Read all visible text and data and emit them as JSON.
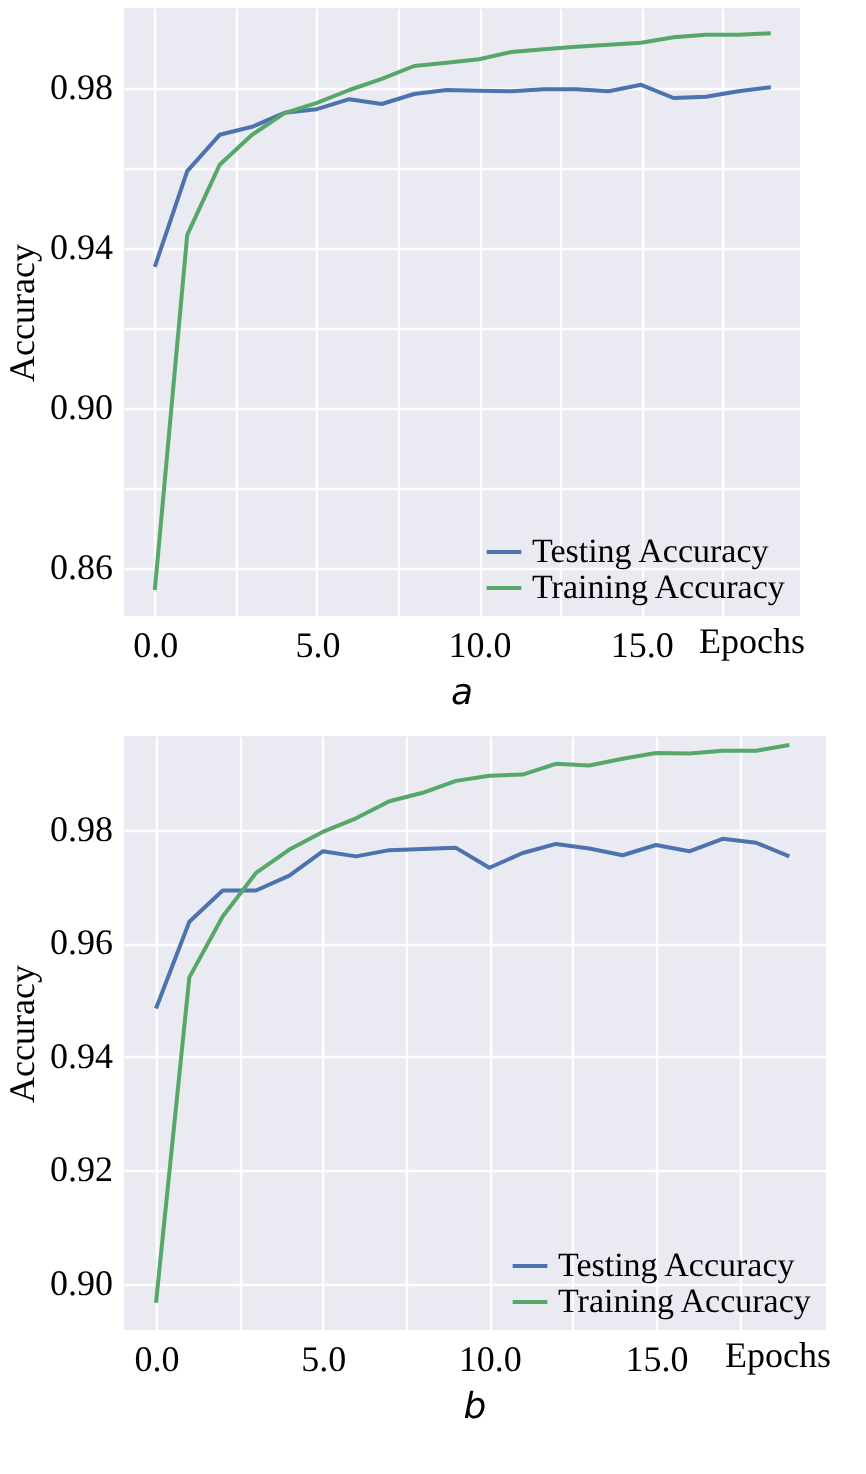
{
  "chart_data": [
    {
      "type": "line",
      "xlabel": "Epochs",
      "ylabel": "Accuracy",
      "annotations": [
        "a"
      ],
      "x": [
        0,
        1,
        2,
        3,
        4,
        5,
        6,
        7,
        8,
        9,
        10,
        11,
        12,
        13,
        14,
        15,
        16,
        17,
        18,
        19
      ],
      "series": [
        {
          "name": "Testing Accuracy",
          "color": "#4c72b0",
          "values": [
            0.9353,
            0.9592,
            0.9683,
            0.9703,
            0.9738,
            0.9747,
            0.9772,
            0.976,
            0.9785,
            0.9795,
            0.9793,
            0.9792,
            0.9797,
            0.9797,
            0.9792,
            0.9808,
            0.9775,
            0.9778,
            0.9792,
            0.9802
          ]
        },
        {
          "name": "Training Accuracy",
          "color": "#55a868",
          "values": [
            0.8545,
            0.9433,
            0.9608,
            0.9683,
            0.9737,
            0.9763,
            0.9795,
            0.9823,
            0.9855,
            0.9863,
            0.9872,
            0.989,
            0.9897,
            0.9903,
            0.9908,
            0.9913,
            0.9927,
            0.9933,
            0.9933,
            0.9937
          ]
        }
      ],
      "xlim": [
        -0.95,
        19.9
      ],
      "ylim": [
        0.848,
        1.0
      ],
      "xticks": [
        {
          "value": 0,
          "label": "0.0"
        },
        {
          "value": 2.5,
          "label": null
        },
        {
          "value": 5,
          "label": "5.0"
        },
        {
          "value": 7.5,
          "label": null
        },
        {
          "value": 10,
          "label": "10.0"
        },
        {
          "value": 12.5,
          "label": null
        },
        {
          "value": 15,
          "label": "15.0"
        },
        {
          "value": 17.5,
          "label": null
        }
      ],
      "yticks": [
        0.86,
        {
          "value": 0.88,
          "label": null
        },
        {
          "value": 0.9,
          "label": "0.90"
        },
        {
          "value": 0.92,
          "label": null
        },
        0.94,
        {
          "value": 0.96,
          "label": null
        },
        0.98
      ],
      "grid": true,
      "legend": "bottom right",
      "line_style": "solid",
      "marker": "none"
    },
    {
      "type": "line",
      "xlabel": "Epochs",
      "ylabel": "Accuracy",
      "annotations": [
        "b"
      ],
      "x": [
        0,
        1,
        2,
        3,
        4,
        5,
        6,
        7,
        8,
        9,
        10,
        11,
        12,
        13,
        14,
        15,
        16,
        17,
        18,
        19
      ],
      "series": [
        {
          "name": "Testing Accuracy",
          "color": "#4c72b0",
          "values": [
            0.9485,
            0.9638,
            0.9693,
            0.9693,
            0.9719,
            0.9762,
            0.9753,
            0.9764,
            0.9766,
            0.9768,
            0.9733,
            0.9759,
            0.9775,
            0.9767,
            0.9755,
            0.9773,
            0.9762,
            0.9784,
            0.9777,
            0.9753
          ]
        },
        {
          "name": "Training Accuracy",
          "color": "#55a868",
          "values": [
            0.8967,
            0.954,
            0.9647,
            0.9724,
            0.9765,
            0.9796,
            0.982,
            0.985,
            0.9865,
            0.9886,
            0.9895,
            0.9897,
            0.9916,
            0.9913,
            0.9925,
            0.9935,
            0.9934,
            0.9939,
            0.9939,
            0.9949
          ]
        }
      ],
      "xlim": [
        -0.96,
        20.1
      ],
      "ylim": [
        0.8919,
        0.9965
      ],
      "xticks": [
        {
          "value": 0,
          "label": "0.0"
        },
        {
          "value": 2.5,
          "label": null
        },
        {
          "value": 5,
          "label": "5.0"
        },
        {
          "value": 7.5,
          "label": null
        },
        {
          "value": 10,
          "label": "10.0"
        },
        {
          "value": 12.5,
          "label": null
        },
        {
          "value": 15,
          "label": "15.0"
        },
        {
          "value": 17.5,
          "label": null
        }
      ],
      "yticks": [
        {
          "value": 0.9,
          "label": "0.90"
        },
        0.92,
        0.94,
        0.96,
        0.98
      ],
      "grid": true,
      "legend": "bottom right",
      "line_style": "solid",
      "marker": "none"
    }
  ]
}
